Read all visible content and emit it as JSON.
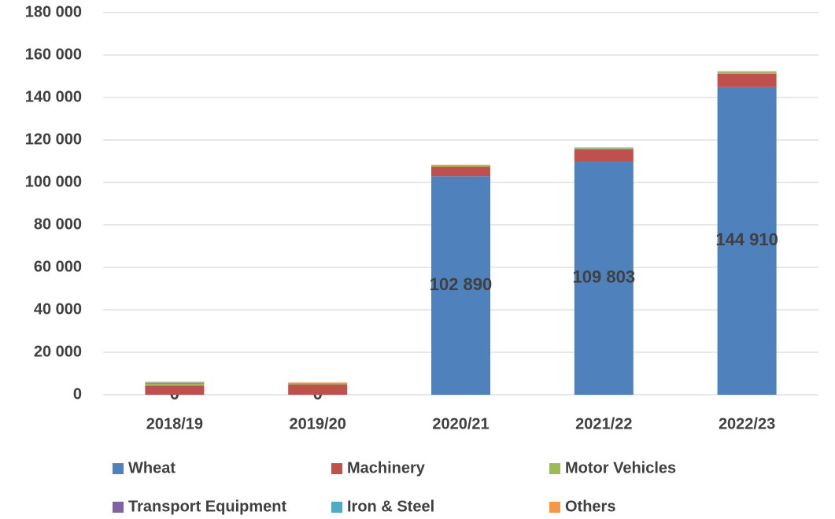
{
  "chart_data": {
    "type": "bar",
    "stacked": true,
    "categories": [
      "2018/19",
      "2019/20",
      "2020/21",
      "2021/22",
      "2022/23"
    ],
    "series": [
      {
        "name": "Wheat",
        "color": "#4f81bd",
        "values": [
          0,
          0,
          102890,
          109803,
          144910
        ],
        "value_labels": [
          "0",
          "0",
          "102 890",
          "109 803",
          "144 910"
        ]
      },
      {
        "name": "Machinery",
        "color": "#c0504d",
        "values": [
          4300,
          4800,
          4500,
          5800,
          6300
        ]
      },
      {
        "name": "Motor Vehicles",
        "color": "#9bbb59",
        "values": [
          1000,
          600,
          500,
          500,
          700
        ]
      },
      {
        "name": "Transport Equipment",
        "color": "#8064a2",
        "values": [
          300,
          100,
          100,
          100,
          100
        ]
      },
      {
        "name": "Iron & Steel",
        "color": "#4bacc6",
        "values": [
          200,
          100,
          100,
          100,
          100
        ]
      },
      {
        "name": "Others",
        "color": "#f79646",
        "values": [
          300,
          200,
          200,
          200,
          300
        ]
      }
    ],
    "ylim": [
      0,
      180000
    ],
    "yticks": [
      0,
      {
        "value": 20000,
        "label": "20 000"
      },
      {
        "value": 40000,
        "label": "40 000"
      },
      {
        "value": 60000,
        "label": "60 000"
      },
      {
        "value": 80000,
        "label": "80 000"
      },
      {
        "value": 100000,
        "label": "100 000"
      },
      {
        "value": 120000,
        "label": "120 000"
      },
      {
        "value": 140000,
        "label": "140 000"
      },
      {
        "value": 160000,
        "label": "160 000"
      },
      {
        "value": 180000,
        "label": "180 000"
      }
    ],
    "grid": true,
    "legend": "bottom"
  }
}
